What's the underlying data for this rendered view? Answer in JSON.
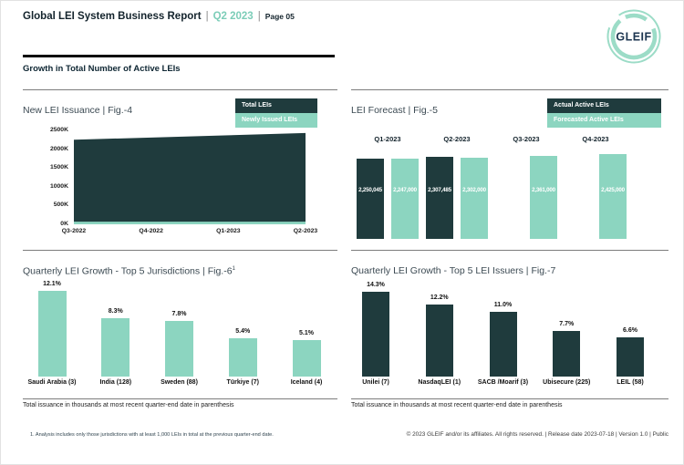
{
  "header": {
    "title": "Global LEI System Business Report",
    "separator": "|",
    "period": "Q2 2023",
    "page_label": "Page 05",
    "logo_text": "GLEIF"
  },
  "section_title": "Growth in Total Number of Active LEIs",
  "colors": {
    "dark_teal": "#1F3B3D",
    "mint": "#8CD5C0",
    "header_accent": "#7CCDB8"
  },
  "chart_data": [
    {
      "id": "fig4",
      "type": "area",
      "title": "New LEI Issuance | Fig.-4",
      "categories": [
        "Q3-2022",
        "Q4-2022",
        "Q1-2023",
        "Q2-2023"
      ],
      "series": [
        {
          "name": "Total LEIs",
          "color": "#1F3B3D",
          "values_thousands": [
            2250,
            2310,
            2370,
            2430
          ]
        },
        {
          "name": "Newly Issued LEIs",
          "color": "#8CD5C0",
          "values_thousands": [
            70,
            70,
            70,
            70
          ]
        }
      ],
      "y_ticks": [
        "2500K",
        "2000K",
        "1500K",
        "1000K",
        "500K",
        "0K"
      ],
      "y_range_thousands": [
        0,
        2500
      ],
      "legend_position": "top-right",
      "grid": false
    },
    {
      "id": "fig5",
      "type": "bar",
      "title": "LEI Forecast | Fig.-5",
      "categories": [
        "Q1-2023",
        "Q2-2023",
        "Q3-2023",
        "Q4-2023"
      ],
      "series": [
        {
          "name": "Actual Active LEIs",
          "color": "#1F3B3D",
          "values": [
            2250045,
            2307485,
            null,
            null
          ]
        },
        {
          "name": "Forecasted Active LEIs",
          "color": "#8CD5C0",
          "values": [
            2247000,
            2302000,
            2361000,
            2425000
          ]
        }
      ],
      "value_labels_inside_bars": true,
      "legend_position": "top-right",
      "grid": false
    },
    {
      "id": "fig6",
      "type": "bar",
      "title": "Quarterly LEI Growth - Top 5 Jurisdictions | Fig.-6",
      "title_superscript": "1",
      "categories": [
        "Saudi Arabia (3)",
        "India (128)",
        "Sweden (88)",
        "Türkiye (7)",
        "Iceland (4)"
      ],
      "values_pct": [
        12.1,
        8.3,
        7.8,
        5.4,
        5.1
      ],
      "bar_color": "#8CD5C0",
      "footnote": "Total issuance in thousands at most recent quarter-end date in parenthesis",
      "grid": false
    },
    {
      "id": "fig7",
      "type": "bar",
      "title": "Quarterly LEI Growth - Top 5 LEI Issuers | Fig.-7",
      "categories": [
        "Unilei (7)",
        "NasdaqLEI (1)",
        "SACB /Moarif (3)",
        "Ubisecure (225)",
        "LEIL (58)"
      ],
      "values_pct": [
        14.3,
        12.2,
        11.0,
        7.7,
        6.6
      ],
      "bar_color": "#1F3B3D",
      "footnote": "Total issuance in thousands at most recent quarter-end date in parenthesis",
      "grid": false
    }
  ],
  "footnote": "1. Analysis includes only those jurisdictions with at least 1,000 LEIs in total at the previous quarter-end date.",
  "copyright": "© 2023 GLEIF and/or its affiliates. All rights reserved. | Release date 2023-07-18 | Version 1.0 | Public"
}
